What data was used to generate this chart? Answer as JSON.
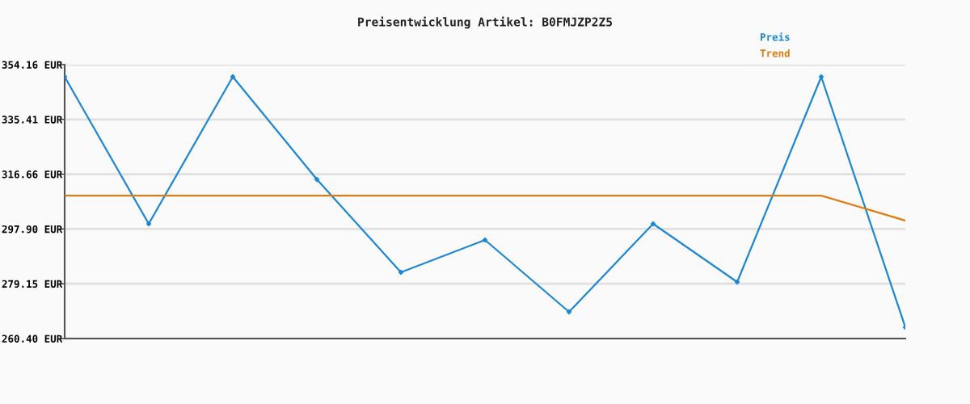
{
  "chart_data": {
    "type": "line",
    "title": "Preisentwicklung Artikel: B0FMJZP2Z5",
    "categories": [
      null,
      null,
      null,
      null,
      null,
      null,
      null,
      null,
      null,
      null,
      null
    ],
    "series": [
      {
        "name": "Preis",
        "color": "#1f87d2",
        "marker": "diamond",
        "values": [
          350.01,
          299.67,
          350.01,
          314.88,
          283.08,
          294.14,
          269.53,
          299.67,
          279.76,
          350.01,
          264.27
        ]
      },
      {
        "name": "Trend",
        "color": "#e07b10",
        "marker": "none",
        "values": [
          309.35,
          309.35,
          309.35,
          309.35,
          309.35,
          309.35,
          309.35,
          309.35,
          309.35,
          309.35,
          300.78
        ]
      }
    ],
    "ylim": [
      260.4,
      354.16
    ],
    "yticks": [
      {
        "value": 260.4,
        "label": "260.40 EUR"
      },
      {
        "value": 279.15,
        "label": "279.15 EUR"
      },
      {
        "value": 297.9,
        "label": "297.90 EUR"
      },
      {
        "value": 316.66,
        "label": "316.66 EUR"
      },
      {
        "value": 335.41,
        "label": "335.41 EUR"
      },
      {
        "value": 354.16,
        "label": "354.16 EUR"
      }
    ],
    "grid": "y",
    "legend": "top right",
    "tick_labels": "y"
  }
}
